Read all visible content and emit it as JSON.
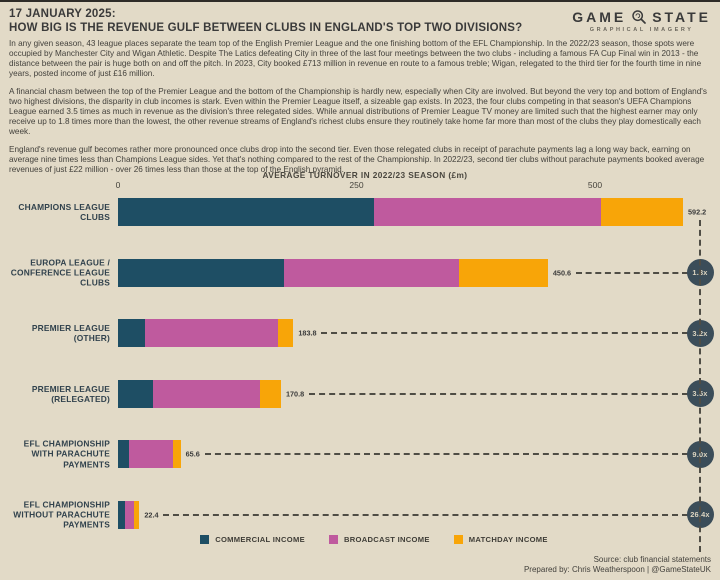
{
  "header": {
    "date_line": "17 JANUARY 2025:",
    "title": "HOW BIG IS THE REVENUE GULF BETWEEN CLUBS IN ENGLAND'S TOP TWO DIVISIONS?",
    "logo": {
      "word1": "GAME",
      "word2": "STATE",
      "subtitle": "GRAPHICAL IMAGERY",
      "icon": "magnifier-icon"
    }
  },
  "intro_paragraphs": [
    "In any given season, 43 league places separate the team top of the English Premier League and the one finishing bottom of the EFL Championship. In the 2022/23 season, those spots were occupied by Manchester City and Wigan Athletic. Despite The Latics defeating City in three of the last four meetings between the two clubs - including a famous FA Cup Final win in 2013 - the distance between the pair is huge both on and off the pitch. In 2023, City booked £713 million in revenue en route to a famous treble; Wigan, relegated to the third tier for the fourth time in nine years, posted income of just £16 million.",
    "A financial chasm between the top of the Premier League and the bottom of the Championship is hardly new, especially when City are involved. But beyond the very top and bottom of England's two highest divisions, the disparity in club incomes is stark. Even within the Premier League itself, a sizeable gap exists. In 2023, the four clubs competing in that season's UEFA Champions League earned 3.5 times as much in revenue as the division's three relegated sides. While annual distributions of Premier League TV money are limited such that the highest earner may only receive up to 1.8 times more than the lowest, the other revenue streams of England's richest clubs ensure they routinely take home far more than most of the clubs they play domestically each week.",
    "England's revenue gulf becomes rather more pronounced once clubs drop into the second tier. Even those relegated clubs in receipt of parachute payments lag a long way back, earning on average nine times less than Champions League sides. Yet that's nothing compared to the rest of the Championship. In 2022/23, second tier clubs without parachute payments booked average revenues of just £22 million - over 26 times less than those at the top of the English pyramid."
  ],
  "chart_data": {
    "type": "bar",
    "orientation": "horizontal",
    "stacked": true,
    "title": "AVERAGE TURNOVER IN 2022/23 SEASON (£m)",
    "x_ticks": [
      0,
      250,
      500
    ],
    "xlim": [
      0,
      630
    ],
    "grid": false,
    "legend_position": "bottom",
    "categories": [
      [
        "CHAMPIONS LEAGUE",
        "CLUBS"
      ],
      [
        "EUROPA LEAGUE /",
        "CONFERENCE LEAGUE",
        "CLUBS"
      ],
      [
        "PREMIER LEAGUE",
        "(OTHER)"
      ],
      [
        "PREMIER LEAGUE",
        "(RELEGATED)"
      ],
      [
        "EFL CHAMPIONSHIP",
        "WITH PARACHUTE",
        "PAYMENTS"
      ],
      [
        "EFL CHAMPIONSHIP",
        "WITHOUT PARACHUTE",
        "PAYMENTS"
      ]
    ],
    "series": [
      {
        "name": "COMMERCIAL INCOME",
        "color": "#1e4e64",
        "values": [
          268.0,
          174.4,
          28.3,
          37.0,
          11.8,
          7.5
        ]
      },
      {
        "name": "BROADCAST INCOME",
        "color": "#bf5a9e",
        "values": [
          238.2,
          183.4,
          139.1,
          111.8,
          46.0,
          9.5
        ]
      },
      {
        "name": "MATCHDAY INCOME",
        "color": "#f8a508",
        "values": [
          86.0,
          92.8,
          16.4,
          22.0,
          7.8,
          5.4
        ]
      }
    ],
    "totals": [
      "592.2",
      "450.6",
      "183.8",
      "170.8",
      "65.6",
      "22.4"
    ],
    "ratios": [
      null,
      "1.3x",
      "3.2x",
      "3.5x",
      "9.0x",
      "26.4x"
    ]
  },
  "footer": {
    "source": "Source: club financial statements",
    "prepared_by": "Prepared by: Chris Weatherspoon | @GameStateUK"
  },
  "colors": {
    "background": "#e2dac7",
    "commercial": "#1e4e64",
    "broadcast": "#bf5a9e",
    "matchday": "#f8a508",
    "bubble": "#3b4d59",
    "text": "#3b3b3b"
  }
}
